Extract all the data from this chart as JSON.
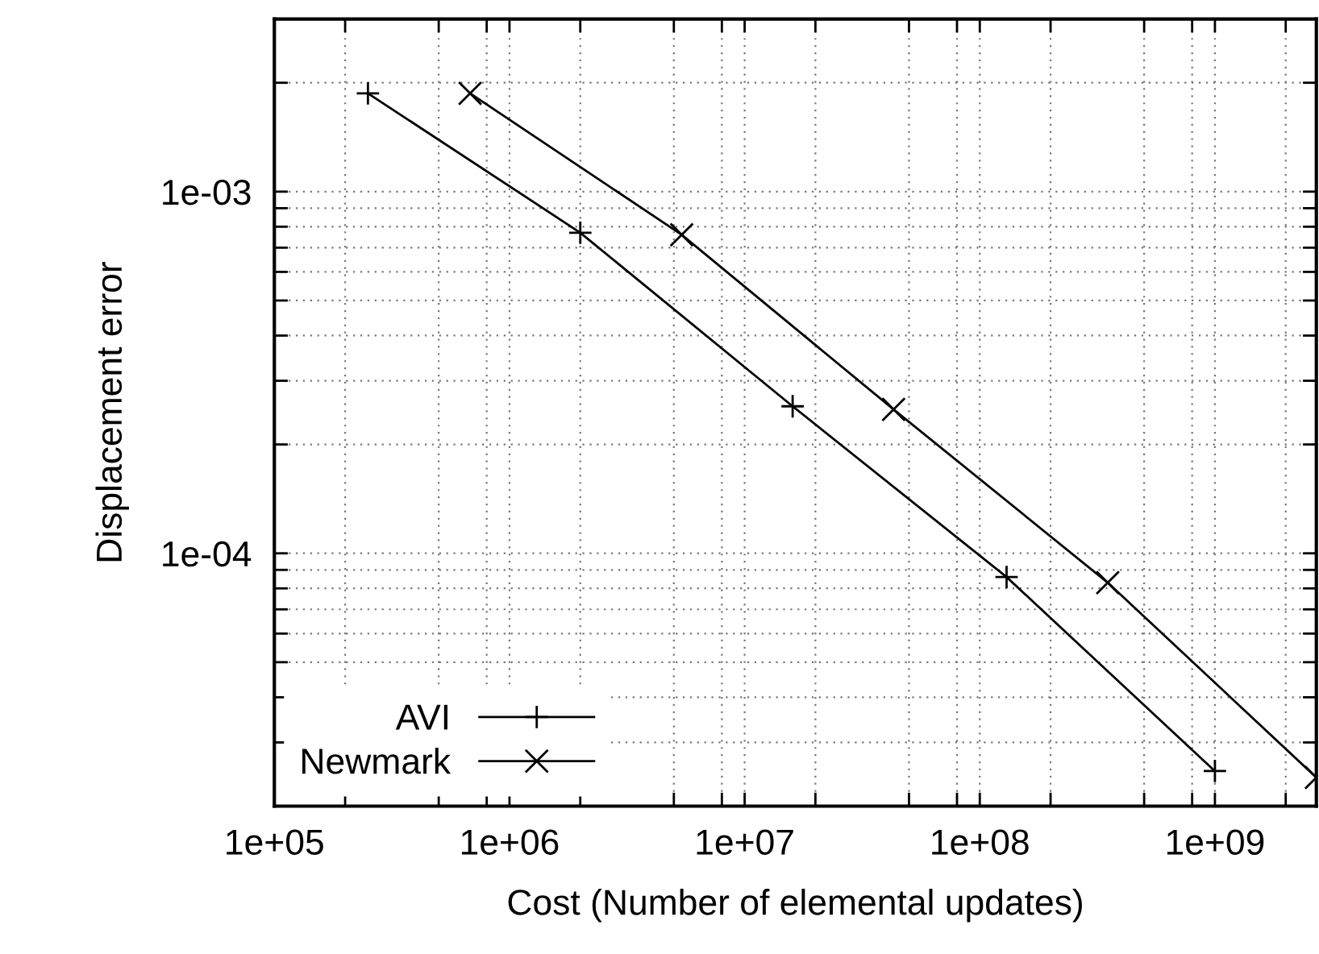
{
  "chart_data": {
    "type": "line",
    "xlabel": "Cost (Number of elemental updates)",
    "ylabel": "Displacement error",
    "log": "xy",
    "grid": true,
    "legend": "bottom left",
    "line_style": "solid",
    "xlim": [
      100000,
      2700000000
    ],
    "ylim": [
      2e-05,
      0.003
    ],
    "xticks": [
      {
        "value": 100000,
        "label": "1e+05"
      },
      {
        "value": 200000,
        "label": null
      },
      {
        "value": 500000,
        "label": null
      },
      {
        "value": 800000,
        "label": null
      },
      {
        "value": 1000000,
        "label": "1e+06"
      },
      {
        "value": 2000000,
        "label": null
      },
      {
        "value": 5000000,
        "label": null
      },
      {
        "value": 8000000,
        "label": null
      },
      {
        "value": 10000000,
        "label": "1e+07"
      },
      {
        "value": 20000000,
        "label": null
      },
      {
        "value": 50000000,
        "label": null
      },
      {
        "value": 80000000,
        "label": null
      },
      {
        "value": 100000000,
        "label": "1e+08"
      },
      {
        "value": 200000000,
        "label": null
      },
      {
        "value": 500000000,
        "label": null
      },
      {
        "value": 800000000,
        "label": null
      },
      {
        "value": 1000000000,
        "label": "1e+09"
      },
      {
        "value": 2000000000,
        "label": null
      }
    ],
    "yticks": [
      {
        "value": 2e-05,
        "label": null
      },
      {
        "value": 3e-05,
        "label": null
      },
      {
        "value": 4e-05,
        "label": null
      },
      {
        "value": 5e-05,
        "label": null
      },
      {
        "value": 6e-05,
        "label": null
      },
      {
        "value": 7e-05,
        "label": null
      },
      {
        "value": 8e-05,
        "label": null
      },
      {
        "value": 9e-05,
        "label": null
      },
      {
        "value": 0.0001,
        "label": "1e-04"
      },
      {
        "value": 0.0002,
        "label": null
      },
      {
        "value": 0.0003,
        "label": null
      },
      {
        "value": 0.0004,
        "label": null
      },
      {
        "value": 0.0005,
        "label": null
      },
      {
        "value": 0.0006,
        "label": null
      },
      {
        "value": 0.0007,
        "label": null
      },
      {
        "value": 0.0008,
        "label": null
      },
      {
        "value": 0.0009,
        "label": null
      },
      {
        "value": 0.001,
        "label": "1e-03"
      },
      {
        "value": 0.002,
        "label": null
      }
    ],
    "series": [
      {
        "name": "AVI",
        "color": "#000000",
        "marker": "plus",
        "x": [
          250000,
          2000000,
          16000000,
          130000000,
          1000000000
        ],
        "values": [
          0.00187,
          0.00077,
          0.000255,
          8.6e-05,
          2.5e-05
        ]
      },
      {
        "name": "Newmark",
        "color": "#000000",
        "marker": "cross",
        "x": [
          680000,
          5400000,
          43000000,
          350000000,
          2700000000
        ],
        "values": [
          0.00187,
          0.00076,
          0.00025,
          8.3e-05,
          2.4e-05
        ]
      }
    ]
  }
}
